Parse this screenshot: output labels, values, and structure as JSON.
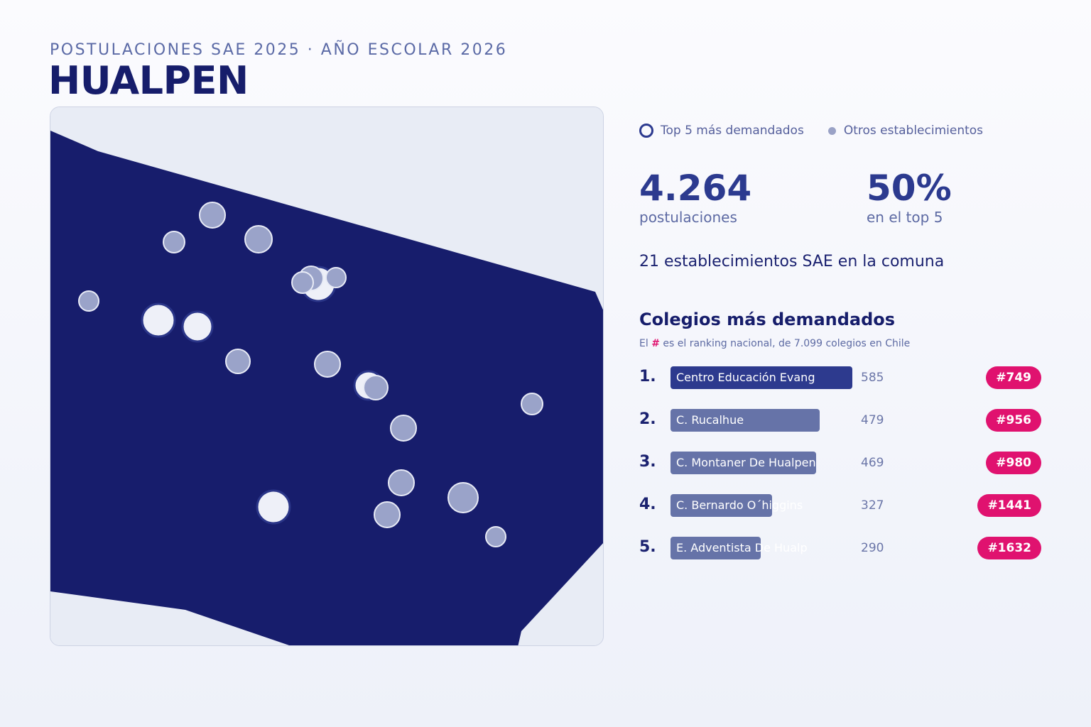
{
  "header": {
    "subtitle": "POSTULACIONES SAE 2025 · AÑO ESCOLAR 2026",
    "title": "HUALPEN"
  },
  "legend": {
    "top5_label": "Top 5 más demandados",
    "others_label": "Otros establecimientos"
  },
  "stats": {
    "applications_value": "4.264",
    "applications_label": "postulaciones",
    "top5_share_value": "50%",
    "top5_share_label": "en el top 5"
  },
  "count_line": "21 establecimientos SAE en la comuna",
  "ranking": {
    "title": "Colegios más demandados",
    "note_prefix": "El",
    "note_hash": "#",
    "note_suffix": "es el ranking nacional, de 7.099 colegios en Chile",
    "items": [
      {
        "rank": "1.",
        "name": "Centro Educación Evang",
        "value": 585,
        "value_text": "585",
        "badge": "#749"
      },
      {
        "rank": "2.",
        "name": "C. Rucalhue",
        "value": 479,
        "value_text": "479",
        "badge": "#956"
      },
      {
        "rank": "3.",
        "name": "C. Montaner De Hualpen",
        "value": 469,
        "value_text": "469",
        "badge": "#980"
      },
      {
        "rank": "4.",
        "name": "C. Bernardo O´higgins",
        "value": 327,
        "value_text": "327",
        "badge": "#1441"
      },
      {
        "rank": "5.",
        "name": "E. Adventista De Hualp",
        "value": 290,
        "value_text": "290",
        "badge": "#1632"
      }
    ]
  },
  "map": {
    "commune_color": "#171d6c",
    "background_color": "#e8ecf5",
    "top5_fill": "#eef0f8",
    "other_fill": "#9aa3c9",
    "accent": "#e0126f"
  }
}
